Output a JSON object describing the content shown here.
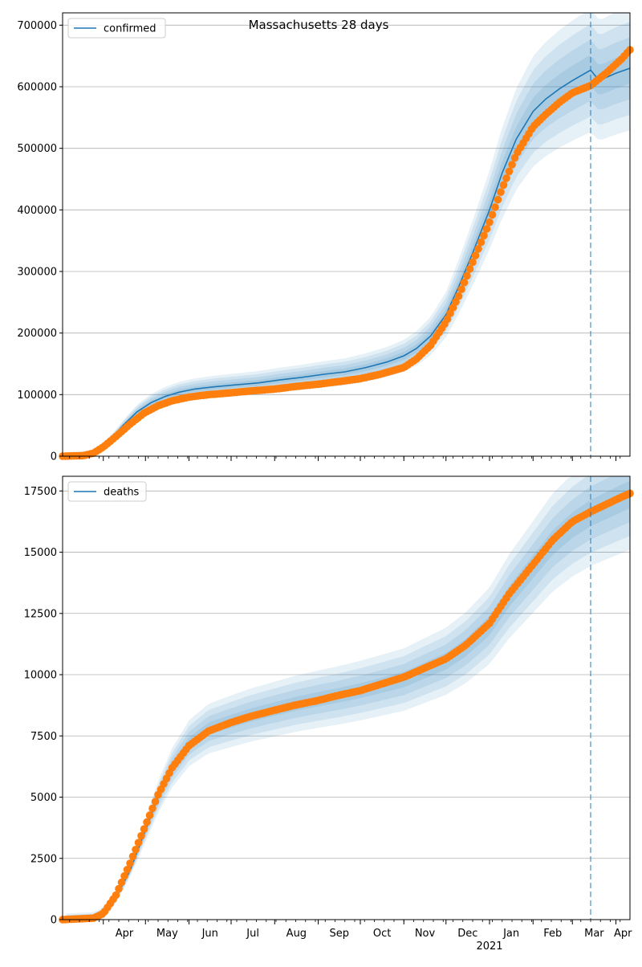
{
  "chart_data": {
    "suptitle": "Massachusetts 28 days",
    "month_labels": [
      "Apr",
      "May",
      "Jun",
      "Jul",
      "Aug",
      "Sep",
      "Oct",
      "Nov",
      "Dec",
      "Jan",
      "Feb",
      "Mar",
      "Apr"
    ],
    "year_label": "2021",
    "month_ticks": [
      "2020-04-01",
      "2020-05-01",
      "2020-06-01",
      "2020-07-01",
      "2020-08-01",
      "2020-09-01",
      "2020-10-01",
      "2020-11-01",
      "2020-12-01",
      "2021-01-01",
      "2021-02-01",
      "2021-03-01",
      "2021-04-01"
    ],
    "x_range": [
      "2020-03-03",
      "2021-04-11"
    ],
    "forecast_start": "2021-03-14",
    "colors": {
      "model": "#1f77b4",
      "observed": "#ff7f0e",
      "band": "#1f77b4",
      "vline": "#1f77b4",
      "grid": "#b0b0b0"
    },
    "panels": [
      {
        "type": "line",
        "legend": "confirmed",
        "legend_position": "top-left",
        "ylim": [
          0,
          720000
        ],
        "yticks": [
          0,
          100000,
          200000,
          300000,
          400000,
          500000,
          600000,
          700000
        ],
        "ytick_labels": [
          "0",
          "100000",
          "200000",
          "300000",
          "400000",
          "500000",
          "600000",
          "700000"
        ],
        "grid": "horizontal",
        "model": {
          "x": [
            "2020-03-03",
            "2020-03-20",
            "2020-03-28",
            "2020-04-05",
            "2020-04-15",
            "2020-04-25",
            "2020-05-05",
            "2020-05-15",
            "2020-05-25",
            "2020-06-05",
            "2020-06-20",
            "2020-07-05",
            "2020-07-20",
            "2020-08-05",
            "2020-08-20",
            "2020-09-05",
            "2020-09-20",
            "2020-10-05",
            "2020-10-20",
            "2020-11-01",
            "2020-11-10",
            "2020-11-20",
            "2020-12-01",
            "2020-12-10",
            "2020-12-20",
            "2021-01-01",
            "2021-01-10",
            "2021-01-20",
            "2021-02-01",
            "2021-02-10",
            "2021-02-20",
            "2021-03-01",
            "2021-03-14",
            "2021-03-20",
            "2021-04-01",
            "2021-04-11"
          ],
          "y": [
            0,
            2000,
            8000,
            25000,
            50000,
            72000,
            87000,
            97000,
            104000,
            109000,
            113000,
            116000,
            119000,
            124000,
            128000,
            133000,
            137000,
            144000,
            153000,
            163000,
            175000,
            195000,
            230000,
            275000,
            330000,
            400000,
            460000,
            515000,
            560000,
            580000,
            597000,
            610000,
            627000,
            610000,
            622000,
            630000
          ]
        },
        "observed": {
          "x": [
            "2020-03-03",
            "2020-03-18",
            "2020-03-25",
            "2020-04-01",
            "2020-04-10",
            "2020-04-20",
            "2020-04-30",
            "2020-05-10",
            "2020-05-20",
            "2020-06-01",
            "2020-06-15",
            "2020-07-01",
            "2020-07-15",
            "2020-08-01",
            "2020-08-15",
            "2020-09-01",
            "2020-09-15",
            "2020-10-01",
            "2020-10-15",
            "2020-11-01",
            "2020-11-10",
            "2020-11-20",
            "2020-12-01",
            "2020-12-10",
            "2020-12-20",
            "2021-01-01",
            "2021-01-10",
            "2021-01-20",
            "2021-02-01",
            "2021-02-10",
            "2021-02-20",
            "2021-03-01",
            "2021-03-14",
            "2021-03-25",
            "2021-04-05",
            "2021-04-11"
          ],
          "y": [
            0,
            1000,
            5000,
            15000,
            32000,
            52000,
            70000,
            82000,
            90000,
            96000,
            100000,
            103000,
            106000,
            109000,
            113000,
            117000,
            121000,
            126000,
            133000,
            144000,
            158000,
            180000,
            218000,
            260000,
            315000,
            380000,
            435000,
            490000,
            535000,
            555000,
            575000,
            590000,
            602000,
            622000,
            645000,
            660000
          ]
        }
      },
      {
        "type": "line",
        "legend": "deaths",
        "legend_position": "top-left",
        "ylim": [
          0,
          18100
        ],
        "yticks": [
          0,
          2500,
          5000,
          7500,
          10000,
          12500,
          15000,
          17500
        ],
        "ytick_labels": [
          "0",
          "2500",
          "5000",
          "7500",
          "10000",
          "12500",
          "15000",
          "17500"
        ],
        "grid": "horizontal",
        "model": {
          "x": [
            "2020-03-03",
            "2020-03-25",
            "2020-04-01",
            "2020-04-10",
            "2020-04-20",
            "2020-04-30",
            "2020-05-10",
            "2020-05-20",
            "2020-06-01",
            "2020-06-15",
            "2020-07-01",
            "2020-07-15",
            "2020-08-01",
            "2020-08-15",
            "2020-09-01",
            "2020-09-15",
            "2020-10-01",
            "2020-10-15",
            "2020-11-01",
            "2020-11-15",
            "2020-12-01",
            "2020-12-15",
            "2021-01-01",
            "2021-01-15",
            "2021-02-01",
            "2021-02-15",
            "2021-03-01",
            "2021-03-14",
            "2021-03-25",
            "2021-04-05",
            "2021-04-11"
          ],
          "y": [
            0,
            50,
            250,
            900,
            2000,
            3500,
            5000,
            6200,
            7200,
            7800,
            8100,
            8350,
            8600,
            8800,
            9000,
            9150,
            9350,
            9550,
            9800,
            10150,
            10550,
            11100,
            12000,
            13200,
            14400,
            15400,
            16100,
            16600,
            16900,
            17200,
            17350
          ]
        },
        "observed": {
          "x": [
            "2020-03-03",
            "2020-03-25",
            "2020-04-01",
            "2020-04-10",
            "2020-04-20",
            "2020-04-30",
            "2020-05-10",
            "2020-05-20",
            "2020-06-01",
            "2020-06-15",
            "2020-07-01",
            "2020-07-15",
            "2020-08-01",
            "2020-08-15",
            "2020-09-01",
            "2020-09-15",
            "2020-10-01",
            "2020-10-15",
            "2020-11-01",
            "2020-11-15",
            "2020-12-01",
            "2020-12-15",
            "2021-01-01",
            "2021-01-15",
            "2021-02-01",
            "2021-02-15",
            "2021-03-01",
            "2021-03-14",
            "2021-03-25",
            "2021-04-05",
            "2021-04-11"
          ],
          "y": [
            0,
            60,
            250,
            1000,
            2300,
            3700,
            5100,
            6200,
            7100,
            7700,
            8050,
            8300,
            8550,
            8750,
            8950,
            9150,
            9350,
            9600,
            9900,
            10250,
            10650,
            11200,
            12100,
            13300,
            14500,
            15500,
            16250,
            16650,
            16950,
            17250,
            17400
          ]
        }
      }
    ]
  }
}
